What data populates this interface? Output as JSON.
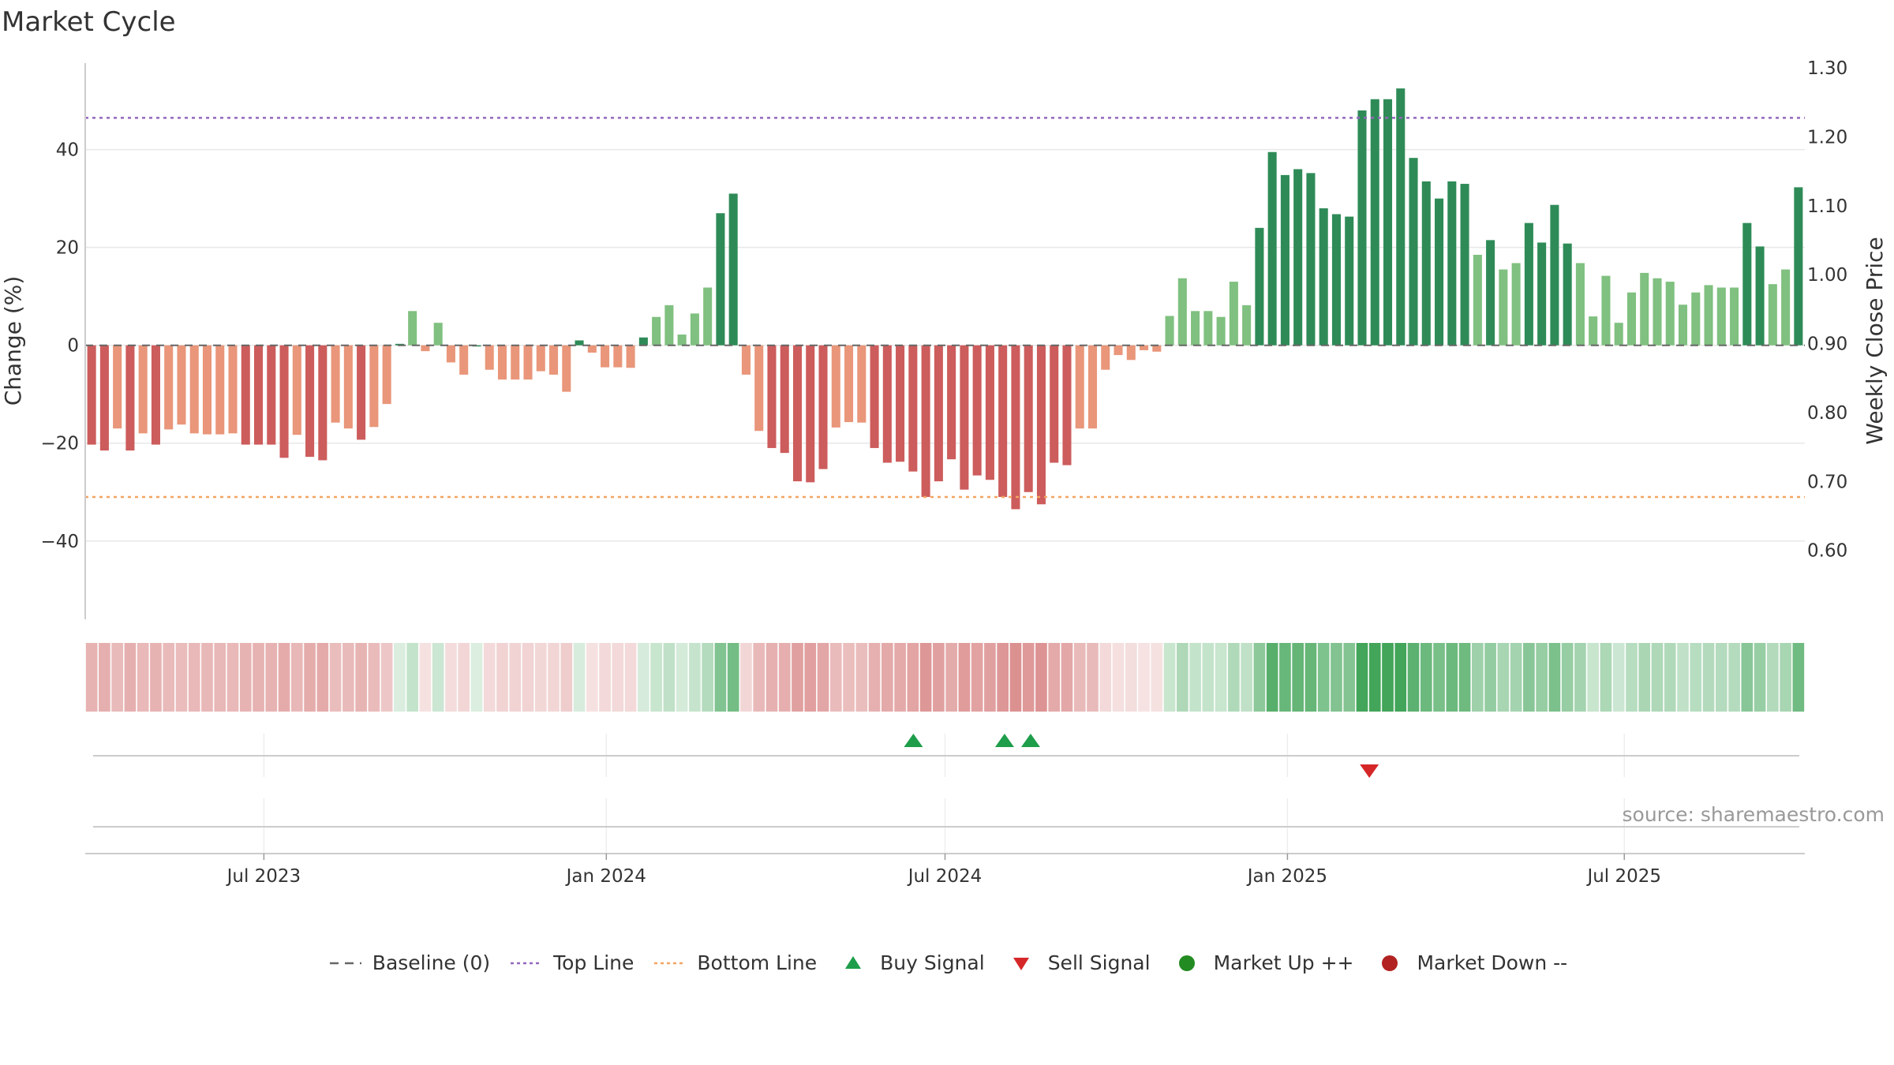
{
  "title": "Market Cycle",
  "source_note": "source: sharemaestro.com",
  "colors": {
    "strong_up": "#2e8b57",
    "up": "#80c080",
    "strong_down": "#cd5c5c",
    "down": "#e9967a",
    "top_line": "#9467bd",
    "bottom_line": "#f4a460",
    "baseline": "#666666",
    "buy": "#1e9e4a",
    "sell": "#d62728",
    "market_up": "#228b22",
    "market_down": "#b22222"
  },
  "legend": [
    {
      "key": "baseline",
      "label": "Baseline (0)",
      "icon": "dash-line-icon"
    },
    {
      "key": "top",
      "label": "Top Line",
      "icon": "dotted-line-icon"
    },
    {
      "key": "bottom",
      "label": "Bottom Line",
      "icon": "dotted-line-icon"
    },
    {
      "key": "buy",
      "label": "Buy Signal",
      "icon": "triangle-up-icon"
    },
    {
      "key": "sell",
      "label": "Sell Signal",
      "icon": "triangle-down-icon"
    },
    {
      "key": "mup",
      "label": "Market Up ++",
      "icon": "dot-icon"
    },
    {
      "key": "mdown",
      "label": "Market Down --",
      "icon": "dot-icon"
    }
  ],
  "chart_data": {
    "type": "bar",
    "title": "Market Cycle",
    "ylabel": "Change (%)",
    "y2label": "Weekly Close Price",
    "ylim": [
      -56,
      58
    ],
    "yticks": [
      {
        "v": -40,
        "t": "−40"
      },
      {
        "v": -20,
        "t": "−20"
      },
      {
        "v": 0,
        "t": "0"
      },
      {
        "v": 20,
        "t": "20"
      },
      {
        "v": 40,
        "t": "40"
      }
    ],
    "y2lim": [
      0.5,
      1.3
    ],
    "y2ticks": [
      "0.60",
      "0.70",
      "0.80",
      "0.90",
      "1.00",
      "1.10",
      "1.20",
      "1.30"
    ],
    "x_start": "2023-03-27",
    "x_end": "2025-10-06",
    "xticks": [
      {
        "date": "2023-07-01",
        "label": "Jul 2023"
      },
      {
        "date": "2024-01-01",
        "label": "Jan 2024"
      },
      {
        "date": "2024-07-01",
        "label": "Jul 2024"
      },
      {
        "date": "2025-01-01",
        "label": "Jan 2025"
      },
      {
        "date": "2025-07-01",
        "label": "Jul 2025"
      }
    ],
    "first_week": "2023-03-31",
    "top_line": 46.5,
    "bottom_line": -31,
    "grid": true,
    "legend_position": "bottom",
    "values": [
      -20.3,
      -21.5,
      -17,
      -21.5,
      -18,
      -20.3,
      -17.2,
      -16.2,
      -18,
      -18.2,
      -18.2,
      -18,
      -20.3,
      -20.3,
      -20.3,
      -23,
      -18.3,
      -22.8,
      -23.5,
      -15.8,
      -17,
      -19.3,
      -16.7,
      -12,
      0.3,
      7,
      -1.2,
      4.6,
      -3.5,
      -6,
      0,
      -5,
      -7,
      -7,
      -7,
      -5.3,
      -6,
      -9.5,
      1,
      -1.5,
      -4.5,
      -4.5,
      -4.6,
      1.6,
      5.8,
      8.2,
      2.2,
      6.5,
      11.8,
      27,
      31,
      -6,
      -17.5,
      -21,
      -22,
      -27.8,
      -28,
      -25.3,
      -16.8,
      -15.7,
      -15.8,
      -21,
      -24,
      -23.8,
      -25.8,
      -31,
      -27.8,
      -23.3,
      -29.5,
      -26.6,
      -27.5,
      -31,
      -33.5,
      -30,
      -32.5,
      -24,
      -24.5,
      -17,
      -17,
      -5,
      -2,
      -3,
      -1,
      -1.3,
      6,
      13.7,
      7,
      7,
      5.8,
      13,
      8.2,
      24,
      39.5,
      34.8,
      36,
      35.2,
      28,
      26.8,
      26.3,
      48,
      50.3,
      50.3,
      52.5,
      38.3,
      33.5,
      30,
      33.5,
      33,
      18.5,
      21.5,
      15.5,
      16.8,
      25,
      21,
      28.7,
      20.8,
      16.8,
      5.9,
      14.2,
      4.6,
      10.8,
      14.8,
      13.7,
      13,
      8.3,
      10.8,
      12.3,
      11.8,
      11.8,
      25,
      20.2,
      12.5,
      15.5,
      32.3
    ],
    "buy_signals": [
      "2024-06-14",
      "2024-08-02",
      "2024-08-16"
    ],
    "sell_signals": [
      "2025-02-14"
    ]
  }
}
